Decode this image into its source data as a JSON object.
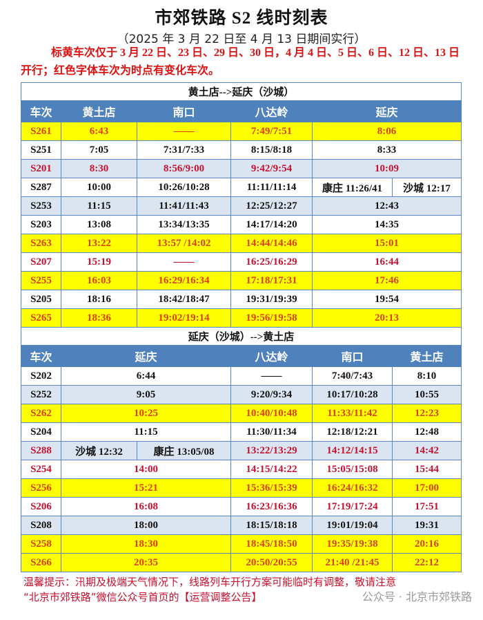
{
  "title": "市郊铁路 S2 线时刻表",
  "subtitle": "（2025 年 3 月 22 日至 4 月 13 日期间实行）",
  "notice": "标黄车次仅于 3 月 22 日、23 日、29 日、30 日，4 月 4 日、5 日、6 日、12 日、13 日开行；红色字体车次为时点有变化车次。",
  "colors": {
    "yellow_row": "#ffff00",
    "blue_row": "#dbe5f1",
    "header": "#4f81bd",
    "changed_text": "#c8102e",
    "yellow_text": "#d9400e"
  },
  "tables": [
    {
      "section": "黄土店-->延庆（沙城）",
      "headers": [
        {
          "text": "车次",
          "span": 1
        },
        {
          "text": "黄土店",
          "span": 1
        },
        {
          "text": "南口",
          "span": 1
        },
        {
          "text": "八达岭",
          "span": 1
        },
        {
          "text": "延庆",
          "span": 2
        }
      ],
      "rows": [
        {
          "style": "yellow",
          "red": false,
          "cells": [
            {
              "text": "S261"
            },
            {
              "text": "6:43"
            },
            {
              "text": "——"
            },
            {
              "text": "7:49/7:51"
            },
            {
              "text": "8:06",
              "span": 2
            }
          ]
        },
        {
          "style": "white",
          "red": false,
          "cells": [
            {
              "text": "S251"
            },
            {
              "text": "7:05"
            },
            {
              "text": "7:31/7:33"
            },
            {
              "text": "8:15/8:18"
            },
            {
              "text": "8:33",
              "span": 2
            }
          ]
        },
        {
          "style": "blue",
          "red": true,
          "cells": [
            {
              "text": "S201"
            },
            {
              "text": "8:30"
            },
            {
              "text": "8:56/9:00"
            },
            {
              "text": "9:42/9:54"
            },
            {
              "text": "10:09",
              "span": 2
            }
          ]
        },
        {
          "style": "white",
          "red": false,
          "cells": [
            {
              "text": "S287"
            },
            {
              "text": "10:00"
            },
            {
              "text": "10:26/10:28"
            },
            {
              "text": "11:11/11:14"
            },
            {
              "text": "康庄 11:26/41"
            },
            {
              "text": "沙城 12:17"
            }
          ]
        },
        {
          "style": "blue",
          "red": false,
          "cells": [
            {
              "text": "S253"
            },
            {
              "text": "11:15"
            },
            {
              "text": "11:41/11:43"
            },
            {
              "text": "12:25/12:27"
            },
            {
              "text": "12:43",
              "span": 2
            }
          ]
        },
        {
          "style": "white",
          "red": false,
          "cells": [
            {
              "text": "S203"
            },
            {
              "text": "13:08"
            },
            {
              "text": "13:34/13:35"
            },
            {
              "text": "14:17/14:20"
            },
            {
              "text": "14:35",
              "span": 2
            }
          ]
        },
        {
          "style": "yellow",
          "red": false,
          "cells": [
            {
              "text": "S263"
            },
            {
              "text": "13:22"
            },
            {
              "text": "13:57 /14:02"
            },
            {
              "text": "14:44/14:46"
            },
            {
              "text": "15:01",
              "span": 2
            }
          ]
        },
        {
          "style": "white",
          "red": true,
          "cells": [
            {
              "text": "S207"
            },
            {
              "text": "15:19"
            },
            {
              "text": "——"
            },
            {
              "text": "16:25/16:29"
            },
            {
              "text": "16:44",
              "span": 2
            }
          ]
        },
        {
          "style": "yellow",
          "red": false,
          "cells": [
            {
              "text": "S255"
            },
            {
              "text": "16:03"
            },
            {
              "text": "16:29/16:34"
            },
            {
              "text": "17:18/17:31"
            },
            {
              "text": "17:46",
              "span": 2
            }
          ]
        },
        {
          "style": "white",
          "red": false,
          "cells": [
            {
              "text": "S205"
            },
            {
              "text": "18:16"
            },
            {
              "text": "18:42/18:47"
            },
            {
              "text": "19:31/19:39"
            },
            {
              "text": "19:54",
              "span": 2
            }
          ]
        },
        {
          "style": "yellow",
          "red": false,
          "cells": [
            {
              "text": "S265"
            },
            {
              "text": "18:36"
            },
            {
              "text": "19:02/19:14"
            },
            {
              "text": "19:56/19:58"
            },
            {
              "text": "20:13",
              "span": 2
            }
          ]
        }
      ]
    },
    {
      "section": "延庆（沙城）-->黄土店",
      "headers": [
        {
          "text": "车次",
          "span": 1
        },
        {
          "text": "延庆",
          "span": 2
        },
        {
          "text": "八达岭",
          "span": 1
        },
        {
          "text": "南口",
          "span": 1
        },
        {
          "text": "黄土店",
          "span": 1
        }
      ],
      "rows": [
        {
          "style": "white",
          "red": false,
          "cells": [
            {
              "text": "S202"
            },
            {
              "text": "6:44",
              "span": 2
            },
            {
              "text": "——"
            },
            {
              "text": "7:40/7:43"
            },
            {
              "text": "8:10"
            }
          ]
        },
        {
          "style": "blue",
          "red": false,
          "cells": [
            {
              "text": "S252"
            },
            {
              "text": "9:05",
              "span": 2
            },
            {
              "text": "9:20/9:34"
            },
            {
              "text": "10:17/10:28"
            },
            {
              "text": "10:55"
            }
          ]
        },
        {
          "style": "yellow",
          "red": false,
          "cells": [
            {
              "text": "S262"
            },
            {
              "text": "10:25",
              "span": 2
            },
            {
              "text": "10:40/10:48"
            },
            {
              "text": "11:33/11:42"
            },
            {
              "text": "12:23"
            }
          ]
        },
        {
          "style": "white",
          "red": false,
          "cells": [
            {
              "text": "S204"
            },
            {
              "text": "11:15",
              "span": 2
            },
            {
              "text": "11:30/11:34"
            },
            {
              "text": "12:18/12:21"
            },
            {
              "text": "12:48"
            }
          ]
        },
        {
          "style": "blue",
          "red": true,
          "cells": [
            {
              "text": "S288"
            },
            {
              "text": "沙城 12:32",
              "black": true
            },
            {
              "text": "康庄 13:05/08",
              "black": true
            },
            {
              "text": "13:22/13:29"
            },
            {
              "text": "14:12/14:15"
            },
            {
              "text": "14:42"
            }
          ]
        },
        {
          "style": "white",
          "red": true,
          "cells": [
            {
              "text": "S254"
            },
            {
              "text": "14:00",
              "span": 2
            },
            {
              "text": "14:15/14:22"
            },
            {
              "text": "15:05/15:08"
            },
            {
              "text": "15:44"
            }
          ]
        },
        {
          "style": "yellow",
          "red": false,
          "cells": [
            {
              "text": "S256"
            },
            {
              "text": "15:21",
              "span": 2
            },
            {
              "text": "15:36/15:39"
            },
            {
              "text": "16:24/16:32"
            },
            {
              "text": "17:00"
            }
          ]
        },
        {
          "style": "white",
          "red": true,
          "cells": [
            {
              "text": "S206"
            },
            {
              "text": "16:08",
              "span": 2
            },
            {
              "text": "16:23/16:36"
            },
            {
              "text": "17:19/17:24"
            },
            {
              "text": "17:51"
            }
          ]
        },
        {
          "style": "blue",
          "red": false,
          "cells": [
            {
              "text": "S208"
            },
            {
              "text": "18:00",
              "span": 2
            },
            {
              "text": "18:15/18:18"
            },
            {
              "text": "19:01/19:04"
            },
            {
              "text": "19:31"
            }
          ]
        },
        {
          "style": "yellow",
          "red": false,
          "cells": [
            {
              "text": "S258"
            },
            {
              "text": "18:30",
              "span": 2
            },
            {
              "text": "18:45/18:50"
            },
            {
              "text": "19:35/19:38"
            },
            {
              "text": "20:16"
            }
          ]
        },
        {
          "style": "yellow",
          "red": false,
          "cells": [
            {
              "text": "S266"
            },
            {
              "text": "20:35",
              "span": 2
            },
            {
              "text": "20:50/20:55"
            },
            {
              "text": "21:40 /21:45"
            },
            {
              "text": "22:12"
            }
          ]
        }
      ]
    }
  ],
  "footer": {
    "line1": "温馨提示：汛期及极端天气情况下，线路列车开行方案可能临时有调整，敬请注意",
    "line2": "“北京市郊铁路”微信公众号首页的【运营调整公告】"
  },
  "watermark": "公众号 · 北京市郊铁路"
}
